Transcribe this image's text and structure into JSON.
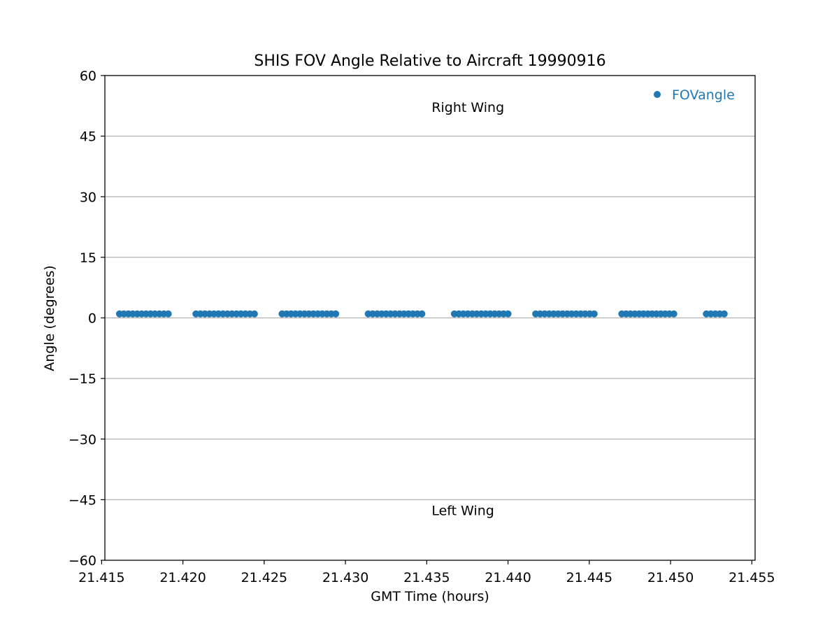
{
  "chart_data": {
    "type": "scatter",
    "title": "SHIS FOV Angle Relative to Aircraft 19990916",
    "xlabel": "GMT Time (hours)",
    "ylabel": "Angle (degrees)",
    "xlim": [
      21.4152,
      21.4552
    ],
    "ylim": [
      -60,
      60
    ],
    "x_ticks": [
      21.415,
      21.42,
      21.425,
      21.43,
      21.435,
      21.44,
      21.445,
      21.45,
      21.455
    ],
    "x_tick_labels": [
      "21.415",
      "21.420",
      "21.425",
      "21.430",
      "21.435",
      "21.440",
      "21.445",
      "21.450",
      "21.455"
    ],
    "y_ticks": [
      60,
      45,
      30,
      15,
      0,
      -15,
      -30,
      -45,
      -60
    ],
    "y_tick_labels": [
      "60",
      "45",
      "30",
      "15",
      "0",
      "−30",
      "−45",
      "−60"
    ],
    "y_tick_labels_full": [
      "60",
      "45",
      "30",
      "15",
      "0",
      "−15",
      "−30",
      "−45",
      "−60"
    ],
    "grid": "horizontal",
    "legend_position": "top-right",
    "color": "#1f77b4",
    "annotations": [
      {
        "text": "Right Wing",
        "x": 21.4353,
        "y": 51.0
      },
      {
        "text": "Left Wing",
        "x": 21.4353,
        "y": -48.8
      }
    ],
    "series": [
      {
        "name": "FOVangle",
        "segments": [
          {
            "x_start": 21.4161,
            "x_end": 21.4191,
            "count": 12,
            "y": 1.0
          },
          {
            "x_start": 21.4208,
            "x_end": 21.4244,
            "count": 14,
            "y": 1.0
          },
          {
            "x_start": 21.4261,
            "x_end": 21.4294,
            "count": 13,
            "y": 1.0
          },
          {
            "x_start": 21.4314,
            "x_end": 21.4347,
            "count": 13,
            "y": 1.0
          },
          {
            "x_start": 21.4367,
            "x_end": 21.44,
            "count": 13,
            "y": 1.0
          },
          {
            "x_start": 21.4417,
            "x_end": 21.4453,
            "count": 14,
            "y": 1.0
          },
          {
            "x_start": 21.447,
            "x_end": 21.4502,
            "count": 13,
            "y": 1.0
          },
          {
            "x_start": 21.4522,
            "x_end": 21.4533,
            "count": 5,
            "y": 1.0
          }
        ]
      }
    ]
  }
}
